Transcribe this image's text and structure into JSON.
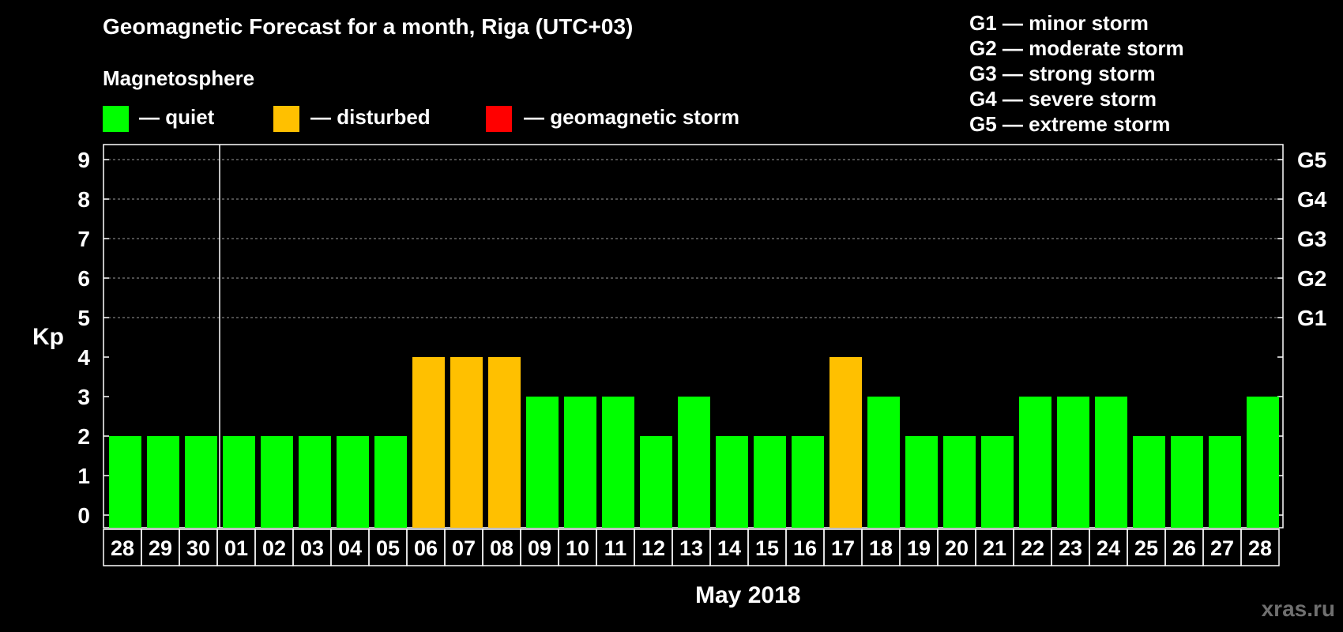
{
  "title": "Geomagnetic Forecast for a month, Riga (UTC+03)",
  "legend": {
    "heading": "Magnetosphere",
    "items": [
      {
        "label": "— quiet",
        "color": "#00ff00"
      },
      {
        "label": "— disturbed",
        "color": "#ffc000"
      },
      {
        "label": "— geomagnetic storm",
        "color": "#ff0000"
      }
    ]
  },
  "g_scale": [
    "G1 — minor storm",
    "G2 — moderate storm",
    "G3 — strong storm",
    "G4 — severe storm",
    "G5 — extreme storm"
  ],
  "watermark": "xras.ru",
  "chart_data": {
    "type": "bar",
    "title": "Geomagnetic Forecast for a month, Riga (UTC+03)",
    "xlabel": "May 2018",
    "ylabel": "Kp",
    "ylim": [
      0,
      9
    ],
    "yticks": [
      "0",
      "1",
      "2",
      "3",
      "4",
      "5",
      "6",
      "7",
      "8",
      "9"
    ],
    "right_axis_labels": [
      {
        "value": 5,
        "label": "G1"
      },
      {
        "value": 6,
        "label": "G2"
      },
      {
        "value": 7,
        "label": "G3"
      },
      {
        "value": 8,
        "label": "G4"
      },
      {
        "value": 9,
        "label": "G5"
      }
    ],
    "grid": true,
    "categories": [
      "28",
      "29",
      "30",
      "01",
      "02",
      "03",
      "04",
      "05",
      "06",
      "07",
      "08",
      "09",
      "10",
      "11",
      "12",
      "13",
      "14",
      "15",
      "16",
      "17",
      "18",
      "19",
      "20",
      "21",
      "22",
      "23",
      "24",
      "25",
      "26",
      "27",
      "28"
    ],
    "values": [
      2,
      2,
      2,
      2,
      2,
      2,
      2,
      2,
      4,
      4,
      4,
      3,
      3,
      3,
      2,
      3,
      2,
      2,
      2,
      4,
      3,
      2,
      2,
      2,
      3,
      3,
      3,
      2,
      2,
      2,
      3
    ],
    "status": [
      "quiet",
      "quiet",
      "quiet",
      "quiet",
      "quiet",
      "quiet",
      "quiet",
      "quiet",
      "disturbed",
      "disturbed",
      "disturbed",
      "quiet",
      "quiet",
      "quiet",
      "quiet",
      "quiet",
      "quiet",
      "quiet",
      "quiet",
      "disturbed",
      "quiet",
      "quiet",
      "quiet",
      "quiet",
      "quiet",
      "quiet",
      "quiet",
      "quiet",
      "quiet",
      "quiet",
      "quiet"
    ],
    "colors": {
      "quiet": "#00ff00",
      "disturbed": "#ffc000",
      "storm": "#ff0000"
    }
  }
}
